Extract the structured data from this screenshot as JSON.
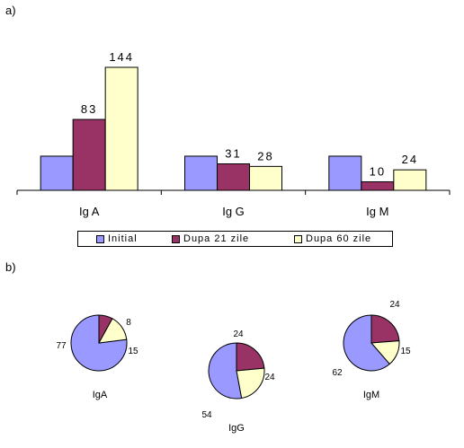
{
  "panels": {
    "a": "a)",
    "b": "b)"
  },
  "colors": {
    "initial": "#9999ff",
    "dupa21": "#993366",
    "dupa60": "#ffffcc",
    "outline": "#000000"
  },
  "chart_data": [
    {
      "type": "bar",
      "categories": [
        "Ig A",
        "Ig G",
        "Ig M"
      ],
      "series": [
        {
          "name": "Initial",
          "values": [
            40,
            40,
            40
          ]
        },
        {
          "name": "Dupa 21 zile",
          "values": [
            83,
            31,
            10
          ]
        },
        {
          "name": "Dupa 60 zile",
          "values": [
            144,
            28,
            24
          ]
        }
      ],
      "data_labels": {
        "Initial": [
          "",
          "",
          ""
        ],
        "Dupa 21 zile": [
          "83",
          "31",
          "10"
        ],
        "Dupa 60 zile": [
          "144",
          "28",
          "24"
        ]
      },
      "legend": "bottom",
      "grid": false
    },
    {
      "type": "pie",
      "charts": [
        {
          "label": "IgA",
          "slices": [
            {
              "series": "Initial",
              "value": 77
            },
            {
              "series": "Dupa 21 zile",
              "value": 8
            },
            {
              "series": "Dupa 60 zile",
              "value": 15
            }
          ]
        },
        {
          "label": "IgG",
          "slices": [
            {
              "series": "Initial",
              "value": 54
            },
            {
              "series": "Dupa 21 zile",
              "value": 24
            },
            {
              "series": "Dupa 60 zile",
              "value": 24
            }
          ]
        },
        {
          "label": "IgM",
          "slices": [
            {
              "series": "Initial",
              "value": 62
            },
            {
              "series": "Dupa 21 zile",
              "value": 24
            },
            {
              "series": "Dupa 60 zile",
              "value": 15
            }
          ]
        }
      ]
    }
  ]
}
